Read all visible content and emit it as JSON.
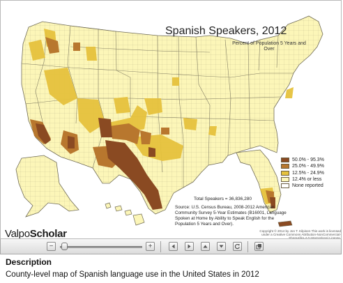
{
  "map": {
    "title": "Spanish Speakers, 2012",
    "subtitle": "Percent of Population 5 Years and Over",
    "legend": [
      {
        "label": "50.0% - 95.3%",
        "color": "#8a4a22"
      },
      {
        "label": "25.0% - 49.9%",
        "color": "#b8772e"
      },
      {
        "label": "12.5% - 24.9%",
        "color": "#e6c23d"
      },
      {
        "label": "12.4% or less",
        "color": "#fcf6b8"
      },
      {
        "label": "None reported",
        "color": "#ffffff"
      }
    ],
    "total": "Total Speakers = 36,836,280",
    "source": "Source:  U.S. Census Bureau, 2008-2012 American Community Survey 5-Year Estimates (B16001, Language Spoken at Home by Ability to Speak English for the Population 5 Years and Over).",
    "copyright": "Copyright © 2014 by Jon T. Kilpinen This work is licensed under a Creative Commons Attribution-NonCommercial-ShareAlike 4.0 International License.",
    "colors": {
      "low": "#fcf6b8",
      "mid": "#e6c23d",
      "high": "#b8772e",
      "top": "#8a4a22",
      "border": "#a9a27a"
    }
  },
  "logo": {
    "part1": "Valpo",
    "part2": "Scholar"
  },
  "toolbar": {
    "zoom_out": "−",
    "zoom_in": "+"
  },
  "description": {
    "heading": "Description",
    "text": "County-level map of Spanish language use in the United States in 2012"
  }
}
